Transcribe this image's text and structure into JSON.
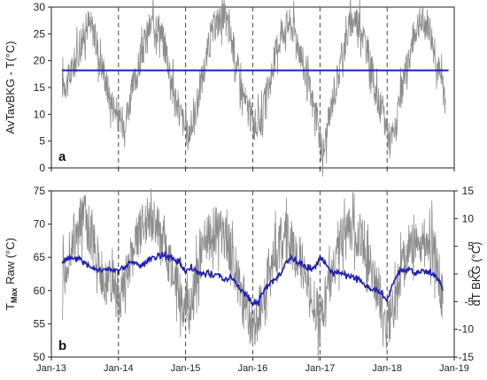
{
  "chart_data": [
    {
      "type": "line",
      "panel_label": "a",
      "ylabel": "AvTavBKG - T(°C)",
      "x_range": [
        "2013-01-01",
        "2019-01-01"
      ],
      "ylim": [
        0,
        30
      ],
      "yticks": [
        0,
        5,
        10,
        15,
        20,
        25,
        30
      ],
      "xtick_labels": [
        "Jan-13",
        "Jan-14",
        "Jan-15",
        "Jan-16",
        "Jan-17",
        "Jan-18",
        "Jan-19"
      ],
      "xtick_dates": [
        "2013-01-01",
        "2014-01-01",
        "2015-01-01",
        "2016-01-01",
        "2017-01-01",
        "2018-01-01",
        "2019-01-01"
      ],
      "vlines": [
        "2014-01-01",
        "2015-01-01",
        "2016-01-01",
        "2017-01-01",
        "2018-01-01"
      ],
      "series": [
        {
          "style": "gray-thin",
          "color": "#8c8c8c",
          "x": [
            "2013-03-01",
            "2013-04-01",
            "2013-05-01",
            "2013-06-01",
            "2013-07-01",
            "2013-07-20",
            "2013-08-15",
            "2013-09-15",
            "2013-10-15",
            "2013-11-15",
            "2013-12-15",
            "2014-01-15",
            "2014-02-15",
            "2014-03-15",
            "2014-04-15",
            "2014-05-15",
            "2014-06-15",
            "2014-07-15",
            "2014-08-15",
            "2014-09-15",
            "2014-10-15",
            "2014-11-15",
            "2014-12-15",
            "2015-01-15",
            "2015-02-15",
            "2015-03-15",
            "2015-04-15",
            "2015-05-15",
            "2015-06-15",
            "2015-07-15",
            "2015-08-15",
            "2015-09-15",
            "2015-10-15",
            "2015-11-15",
            "2015-12-15",
            "2016-01-15",
            "2016-02-15",
            "2016-03-15",
            "2016-04-15",
            "2016-05-15",
            "2016-06-15",
            "2016-07-15",
            "2016-08-15",
            "2016-09-15",
            "2016-10-15",
            "2016-11-15",
            "2016-12-15",
            "2017-01-15",
            "2017-02-15",
            "2017-03-15",
            "2017-04-15",
            "2017-05-15",
            "2017-06-15",
            "2017-07-15",
            "2017-08-15",
            "2017-09-15",
            "2017-10-15",
            "2017-11-15",
            "2017-12-15",
            "2018-01-15",
            "2018-02-15",
            "2018-03-15",
            "2018-04-15",
            "2018-05-15",
            "2018-06-15",
            "2018-07-15",
            "2018-08-15",
            "2018-09-15",
            "2018-10-15",
            "2018-11-15"
          ],
          "y": [
            16,
            16,
            19,
            22,
            25,
            27,
            26,
            21,
            18,
            13,
            11,
            8,
            10,
            14,
            18,
            22,
            26,
            27,
            26,
            22,
            17,
            12,
            9,
            6,
            9,
            14,
            19,
            24,
            27,
            28,
            27,
            23,
            18,
            13,
            10,
            8,
            9,
            13,
            18,
            23,
            26,
            27,
            26,
            22,
            17,
            13,
            9,
            2,
            8,
            14,
            18,
            23,
            27,
            28,
            26,
            22,
            17,
            12,
            10,
            5,
            7,
            13,
            18,
            23,
            27,
            27,
            27,
            22,
            17,
            13
          ]
        },
        {
          "style": "blue-thick",
          "color": "#1f1fb4",
          "x": [
            "2013-03-01",
            "2018-12-01"
          ],
          "y": [
            18.2,
            18.2
          ]
        }
      ]
    },
    {
      "type": "line",
      "panel_label": "b",
      "ylabel_left": "TMax Raw (°C)",
      "ylabel_left_main": "T",
      "ylabel_left_sub": "Max",
      "ylabel_left_rest": " Raw (°C)",
      "ylabel_right": "dT BKG (°C)",
      "x_range": [
        "2013-01-01",
        "2019-01-01"
      ],
      "ylim_left": [
        50,
        75
      ],
      "yticks_left": [
        50,
        55,
        60,
        65,
        70,
        75
      ],
      "ylim_right": [
        -15,
        15
      ],
      "yticks_right": [
        -15,
        -10,
        -5,
        0,
        5,
        10,
        15
      ],
      "xtick_labels": [
        "Jan-13",
        "Jan-14",
        "Jan-15",
        "Jan-16",
        "Jan-17",
        "Jan-18",
        "Jan-19"
      ],
      "xtick_dates": [
        "2013-01-01",
        "2014-01-01",
        "2015-01-01",
        "2016-01-01",
        "2017-01-01",
        "2018-01-01",
        "2019-01-01"
      ],
      "vlines": [
        "2014-01-01",
        "2015-01-01",
        "2016-01-01",
        "2017-01-01",
        "2018-01-01"
      ],
      "series": [
        {
          "style": "gray-thin",
          "axis": "left",
          "color": "#8c8c8c",
          "x": [
            "2013-03-01",
            "2013-04-01",
            "2013-05-01",
            "2013-06-01",
            "2013-07-01",
            "2013-08-01",
            "2013-09-01",
            "2013-10-01",
            "2013-11-01",
            "2013-12-01",
            "2014-01-01",
            "2014-02-01",
            "2014-03-01",
            "2014-04-01",
            "2014-05-01",
            "2014-06-01",
            "2014-07-01",
            "2014-08-01",
            "2014-09-01",
            "2014-10-01",
            "2014-11-01",
            "2014-12-01",
            "2015-01-01",
            "2015-02-01",
            "2015-03-01",
            "2015-04-01",
            "2015-05-01",
            "2015-06-01",
            "2015-07-01",
            "2015-08-01",
            "2015-09-01",
            "2015-10-01",
            "2015-11-01",
            "2015-12-01",
            "2016-01-01",
            "2016-02-01",
            "2016-03-01",
            "2016-04-01",
            "2016-05-01",
            "2016-06-01",
            "2016-07-01",
            "2016-08-01",
            "2016-09-01",
            "2016-10-01",
            "2016-11-01",
            "2016-12-01",
            "2017-01-01",
            "2017-02-01",
            "2017-03-01",
            "2017-04-01",
            "2017-05-01",
            "2017-06-01",
            "2017-07-01",
            "2017-08-01",
            "2017-09-01",
            "2017-10-01",
            "2017-11-01",
            "2017-12-01",
            "2018-01-01",
            "2018-02-01",
            "2018-03-01",
            "2018-04-01",
            "2018-05-01",
            "2018-06-01",
            "2018-07-01",
            "2018-08-01",
            "2018-09-01",
            "2018-10-01",
            "2018-11-01"
          ],
          "y": [
            62,
            64,
            68,
            70,
            71,
            69,
            66,
            63,
            61,
            60,
            59,
            60,
            64,
            67,
            69,
            70,
            71,
            70,
            67,
            64,
            62,
            60,
            57,
            57,
            62,
            66,
            68,
            69,
            69,
            68,
            66,
            63,
            59,
            57,
            54,
            56,
            60,
            64,
            66,
            68,
            68,
            67,
            66,
            63,
            60,
            58,
            55,
            59,
            62,
            65,
            67,
            69,
            69,
            68,
            67,
            64,
            61,
            59,
            54,
            57,
            61,
            64,
            66,
            68,
            68,
            67,
            67,
            64,
            58
          ]
        },
        {
          "style": "blue-thick",
          "axis": "right",
          "color": "#1f1fb4",
          "x": [
            "2013-03-01",
            "2013-04-01",
            "2013-05-01",
            "2013-06-01",
            "2013-07-01",
            "2013-08-01",
            "2013-09-01",
            "2013-10-01",
            "2013-11-01",
            "2013-12-01",
            "2014-01-01",
            "2014-02-01",
            "2014-03-01",
            "2014-04-01",
            "2014-05-01",
            "2014-06-01",
            "2014-07-01",
            "2014-08-01",
            "2014-09-01",
            "2014-10-01",
            "2014-11-01",
            "2014-12-01",
            "2015-01-01",
            "2015-02-01",
            "2015-03-01",
            "2015-04-01",
            "2015-05-01",
            "2015-06-01",
            "2015-07-01",
            "2015-08-01",
            "2015-09-01",
            "2015-10-01",
            "2015-11-01",
            "2015-12-01",
            "2016-01-01",
            "2016-02-01",
            "2016-03-01",
            "2016-04-01",
            "2016-05-01",
            "2016-06-01",
            "2016-07-01",
            "2016-08-01",
            "2016-09-01",
            "2016-10-01",
            "2016-11-01",
            "2016-12-01",
            "2017-01-01",
            "2017-02-01",
            "2017-03-01",
            "2017-04-01",
            "2017-05-01",
            "2017-06-01",
            "2017-07-01",
            "2017-08-01",
            "2017-09-01",
            "2017-10-01",
            "2017-11-01",
            "2017-12-01",
            "2018-01-01",
            "2018-02-01",
            "2018-03-01",
            "2018-04-01",
            "2018-05-01",
            "2018-06-01",
            "2018-07-01",
            "2018-08-01",
            "2018-09-01",
            "2018-10-01",
            "2018-11-01"
          ],
          "y": [
            2,
            3,
            2.5,
            3,
            2,
            1.5,
            1,
            0.5,
            1,
            0.5,
            0.5,
            1,
            2,
            2,
            1.5,
            2,
            3,
            3,
            3.5,
            3,
            2.5,
            2,
            0.5,
            1,
            0.5,
            0,
            0.5,
            -0.5,
            0,
            -1,
            -0.5,
            -1.5,
            -3,
            -4,
            -5.5,
            -5,
            -3,
            -2,
            -1,
            0,
            2,
            3,
            2,
            1.5,
            1,
            1,
            3,
            2,
            0.5,
            0,
            0,
            -0.5,
            -0.5,
            -1,
            -2,
            -2.5,
            -3,
            -3.5,
            -4.5,
            -2,
            0.5,
            0.5,
            1,
            0,
            0.5,
            0.5,
            0,
            -0.5,
            -3
          ]
        }
      ]
    }
  ]
}
